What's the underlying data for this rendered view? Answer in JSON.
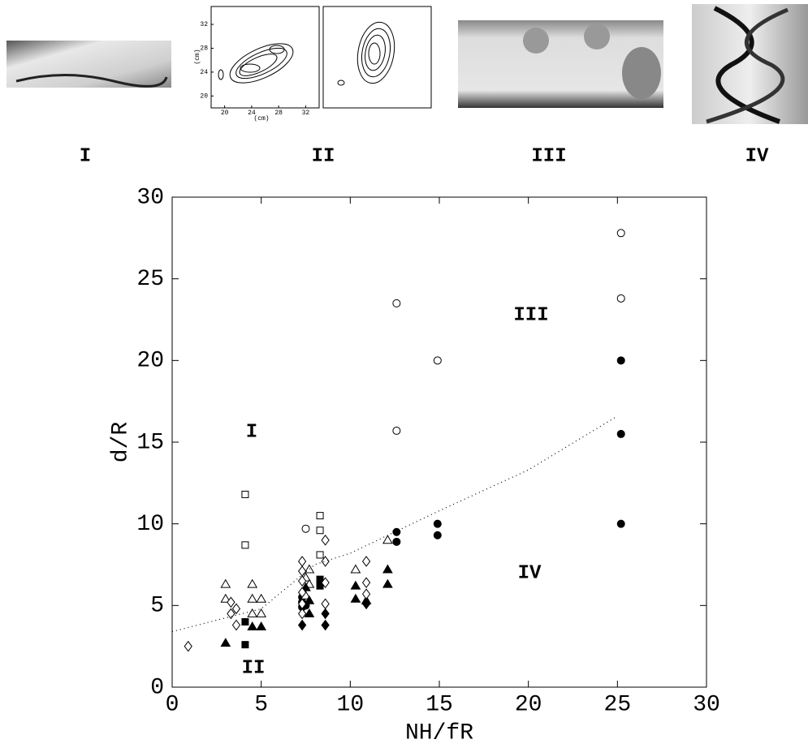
{
  "panels": [
    "I",
    "II",
    "III",
    "IV"
  ],
  "inset": {
    "xticks": [
      20,
      24,
      28,
      32
    ],
    "yticks": [
      20,
      24,
      28,
      32
    ],
    "xlim": [
      18,
      34
    ],
    "ylim": [
      18,
      35
    ],
    "xlabel": "(cm)",
    "ylabel": "(cm)"
  },
  "chart_data": {
    "type": "scatter",
    "xlabel": "NH/fR",
    "ylabel": "d/R",
    "xlim": [
      0,
      30
    ],
    "ylim": [
      0,
      30
    ],
    "xticks": [
      0,
      5,
      10,
      15,
      20,
      25,
      30
    ],
    "yticks": [
      0,
      5,
      10,
      15,
      20,
      25,
      30
    ],
    "grid": false,
    "annotations": [
      "I",
      "II",
      "III",
      "IV"
    ],
    "series": [
      {
        "marker": "circle",
        "filled": false,
        "color": "#000000",
        "x": [
          7.5,
          12.6,
          12.6,
          14.9,
          25.2,
          25.2
        ],
        "values": [
          9.7,
          23.5,
          15.7,
          20.0,
          27.8,
          23.8
        ]
      },
      {
        "marker": "circle",
        "filled": true,
        "color": "#000000",
        "x": [
          12.6,
          12.6,
          14.9,
          14.9,
          25.2,
          25.2,
          25.2,
          7.3,
          7.3,
          7.3,
          7.5
        ],
        "values": [
          9.5,
          8.9,
          10.0,
          9.3,
          20.0,
          15.5,
          10.0,
          5.5,
          5.2,
          4.9,
          5.0
        ]
      },
      {
        "marker": "square",
        "filled": false,
        "color": "#000000",
        "x": [
          4.1,
          4.1,
          8.3,
          8.3,
          8.3
        ],
        "values": [
          11.8,
          8.7,
          10.5,
          9.6,
          8.1
        ]
      },
      {
        "marker": "square",
        "filled": true,
        "color": "#000000",
        "x": [
          4.1,
          4.1,
          8.3,
          8.3
        ],
        "values": [
          4.0,
          2.6,
          6.6,
          6.2
        ]
      },
      {
        "marker": "triangle",
        "filled": false,
        "color": "#000000",
        "x": [
          3.0,
          3.0,
          4.5,
          4.5,
          5.0,
          4.5,
          5.0,
          7.5,
          7.7,
          7.7,
          10.3,
          12.1,
          7.5
        ],
        "values": [
          6.3,
          5.4,
          6.3,
          5.4,
          5.4,
          4.5,
          4.5,
          6.7,
          7.2,
          6.3,
          7.2,
          9.0,
          5.6
        ]
      },
      {
        "marker": "triangle",
        "filled": true,
        "color": "#000000",
        "x": [
          3.0,
          4.5,
          5.0,
          7.5,
          7.7,
          7.7,
          10.3,
          10.3,
          12.1,
          12.1,
          10.9
        ],
        "values": [
          2.7,
          3.7,
          3.7,
          6.1,
          5.3,
          4.5,
          6.2,
          5.4,
          7.2,
          6.3,
          5.3
        ]
      },
      {
        "marker": "diamond",
        "filled": false,
        "color": "#000000",
        "x": [
          0.9,
          3.3,
          3.6,
          3.3,
          3.6,
          7.3,
          7.3,
          7.3,
          7.3,
          7.3,
          7.3,
          8.6,
          8.6,
          8.6,
          8.6,
          10.9,
          10.9,
          10.9
        ],
        "values": [
          2.5,
          5.2,
          4.8,
          4.5,
          3.8,
          7.7,
          7.1,
          6.5,
          5.8,
          5.1,
          4.5,
          9.0,
          7.7,
          6.4,
          5.1,
          7.7,
          6.4,
          5.7
        ]
      },
      {
        "marker": "diamond",
        "filled": true,
        "color": "#000000",
        "x": [
          7.3,
          8.6,
          8.6,
          10.9
        ],
        "values": [
          3.8,
          4.5,
          3.8,
          5.1
        ]
      },
      {
        "marker": "line",
        "style": "dotted",
        "color": "#000000",
        "x": [
          0,
          5,
          8,
          10,
          15,
          20,
          25
        ],
        "values": [
          3.4,
          4.8,
          7.5,
          8.2,
          10.8,
          13.3,
          16.6
        ]
      }
    ]
  }
}
